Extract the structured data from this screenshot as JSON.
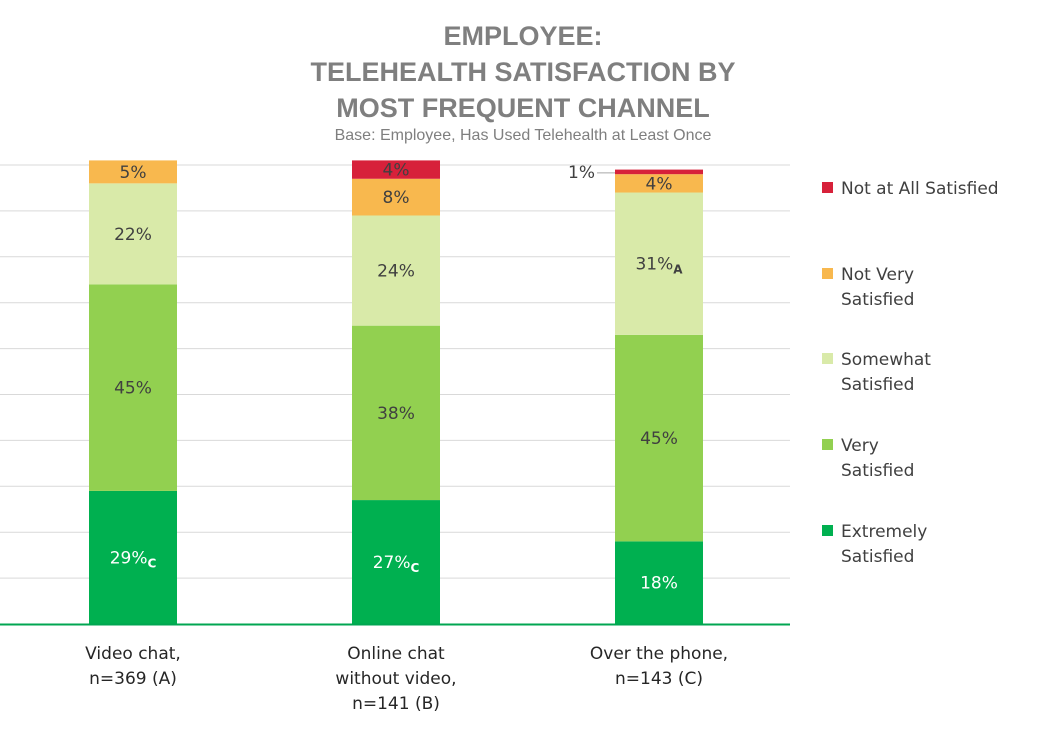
{
  "chart_data": {
    "type": "bar",
    "stacked": true,
    "title_lines": [
      "EMPLOYEE:",
      "TELEHEALTH SATISFACTION BY",
      "MOST FREQUENT CHANNEL"
    ],
    "subtitle": "Base: Employee, Has Used Telehealth at Least Once",
    "categories": [
      [
        "Video chat,",
        "n=369 (A)"
      ],
      [
        "Online chat",
        "without video,",
        "n=141 (B)"
      ],
      [
        "Over the phone,",
        "n=143 (C)"
      ]
    ],
    "ylim": [
      0,
      100
    ],
    "grid": true,
    "legend_position": "right",
    "series": [
      {
        "name": "Extremely Satisfied",
        "color": "#00b050",
        "text_color": "#ffffff",
        "values": [
          29,
          27,
          18
        ],
        "labels": [
          "29%",
          "27%",
          "18%"
        ],
        "subscripts": [
          "C",
          "C",
          ""
        ]
      },
      {
        "name": "Very Satisfied",
        "color": "#92d050",
        "text_color": "#404040",
        "values": [
          45,
          38,
          45
        ],
        "labels": [
          "45%",
          "38%",
          "45%"
        ],
        "subscripts": [
          "",
          "",
          ""
        ]
      },
      {
        "name": "Somewhat Satisfied",
        "color": "#d9eaa9",
        "text_color": "#404040",
        "values": [
          22,
          24,
          31
        ],
        "labels": [
          "22%",
          "24%",
          "31%"
        ],
        "subscripts": [
          "",
          "",
          "A"
        ]
      },
      {
        "name": "Not Very Satisfied",
        "color": "#f8b84e",
        "text_color": "#404040",
        "values": [
          5,
          8,
          4
        ],
        "labels": [
          "5%",
          "8%",
          "4%"
        ],
        "subscripts": [
          "",
          "",
          ""
        ]
      },
      {
        "name": "Not at All Satisfied",
        "color": "#d7213a",
        "text_color": "#404040",
        "values": [
          0,
          4,
          1
        ],
        "labels": [
          "",
          "4%",
          "1%"
        ],
        "subscripts": [
          "",
          "",
          ""
        ]
      }
    ],
    "legend_entries": [
      [
        "Not at All Satisfied"
      ],
      [
        "Not Very",
        "Satisfied"
      ],
      [
        "Somewhat",
        "Satisfied"
      ],
      [
        "Very",
        "Satisfied"
      ],
      [
        "Extremely",
        "Satisfied"
      ]
    ]
  }
}
